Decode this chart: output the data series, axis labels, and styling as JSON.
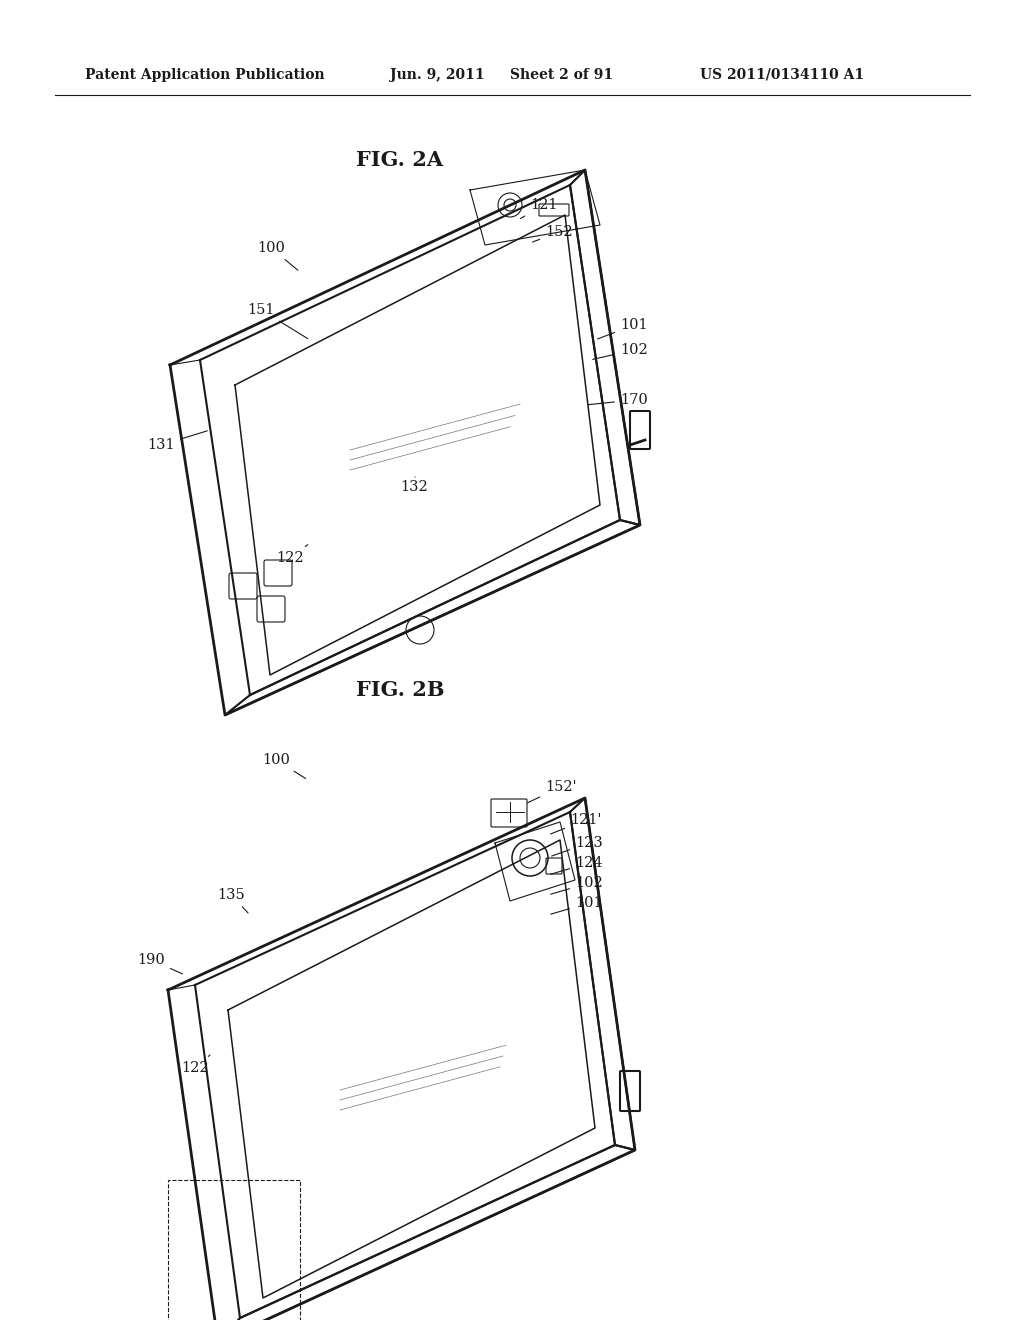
{
  "bg_color": "#ffffff",
  "header_text": "Patent Application Publication",
  "header_date": "Jun. 9, 2011",
  "header_sheet": "Sheet 2 of 91",
  "header_patent": "US 2011/0134110 A1",
  "fig2a_title": "FIG. 2A",
  "fig2b_title": "FIG. 2B",
  "line_color": "#1a1a1a",
  "text_color": "#1a1a1a",
  "line_width": 1.5,
  "thin_line": 0.8,
  "label_fontsize": 10.5,
  "title_fontsize": 15,
  "header_fontsize": 10
}
